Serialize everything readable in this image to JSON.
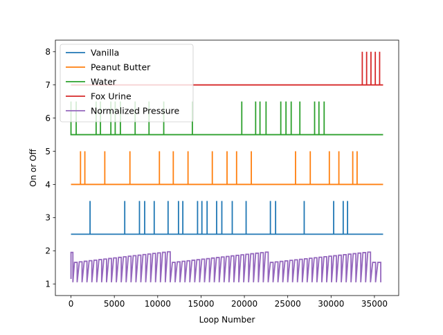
{
  "chart_data": {
    "type": "line",
    "title": "",
    "xlabel": "Loop Number",
    "ylabel": "On or Off",
    "xlim": [
      -1800,
      37800
    ],
    "ylim": [
      0.65,
      8.35
    ],
    "xticks": [
      0,
      5000,
      10000,
      15000,
      20000,
      25000,
      30000,
      35000
    ],
    "yticks": [
      1,
      2,
      3,
      4,
      5,
      6,
      7,
      8
    ],
    "grid": false,
    "legend_position": "upper-left",
    "x_range": [
      0,
      36000
    ],
    "series": [
      {
        "name": "Vanilla",
        "color": "#1f77b4",
        "baseline": 2.5,
        "on_value": 3.5,
        "spikes": [
          2200,
          6200,
          7900,
          8500,
          9600,
          11200,
          12400,
          12900,
          14600,
          15100,
          15700,
          16800,
          17400,
          18600,
          20200,
          23000,
          23600,
          26900,
          30300,
          31400,
          31900
        ]
      },
      {
        "name": "Peanut Butter",
        "color": "#ff7f0e",
        "baseline": 4.0,
        "on_value": 5.0,
        "spikes": [
          1100,
          1600,
          3900,
          6800,
          10200,
          11800,
          13500,
          16300,
          18000,
          19100,
          20800,
          25900,
          27600,
          29800,
          30900,
          32500,
          33000
        ]
      },
      {
        "name": "Water",
        "color": "#2ca02c",
        "baseline": 5.5,
        "on_value": 6.5,
        "spikes": [
          0,
          600,
          2900,
          3400,
          4600,
          5100,
          5700,
          7400,
          9000,
          10700,
          14000,
          19700,
          21300,
          21800,
          22500,
          24200,
          24800,
          25400,
          26400,
          28100,
          28600,
          29200
        ]
      },
      {
        "name": "Fox Urine",
        "color": "#d62728",
        "baseline": 7.0,
        "on_value": 8.0,
        "spikes": [
          33600,
          34100,
          34600,
          35100,
          35600
        ]
      },
      {
        "name": "Normalized Pressure",
        "color": "#9467bd",
        "baseline": 1.05,
        "segments": [
          {
            "x_start": 0,
            "x_end": 400,
            "y_start": 1.95,
            "y_end": 2.0
          },
          {
            "x_start": 400,
            "x_end": 11700,
            "y_start": 1.65,
            "y_end": 1.97
          },
          {
            "x_start": 11700,
            "x_end": 23000,
            "y_start": 1.65,
            "y_end": 1.96
          },
          {
            "x_start": 23000,
            "x_end": 34800,
            "y_start": 1.65,
            "y_end": 1.96
          },
          {
            "x_start": 34800,
            "x_end": 36000,
            "y_start": 1.65,
            "y_end": 1.65
          }
        ],
        "period": 560
      }
    ]
  }
}
